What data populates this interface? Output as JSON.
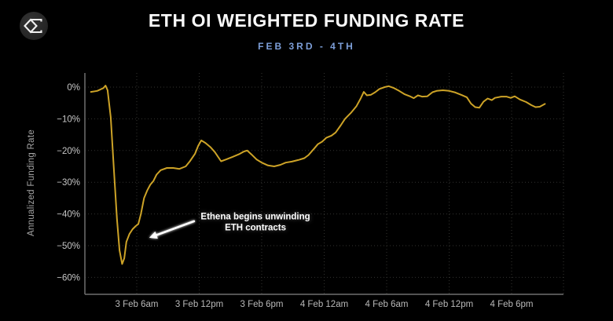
{
  "header": {
    "title": "ETH OI WEIGHTED FUNDING RATE",
    "subtitle": "FEB 3RD - 4TH"
  },
  "logo": {
    "name": "diamond-sigma-logo"
  },
  "colors": {
    "background": "#000000",
    "title": "#fafafa",
    "subtitle": "#7d9fd9",
    "line": "#cda327",
    "grid": "#333330",
    "axis": "#6f6f6f",
    "tick_label": "#bcbcbc",
    "annotation": "#ffffff"
  },
  "chart_data": {
    "type": "line",
    "title": "ETH OI WEIGHTED FUNDING RATE",
    "subtitle": "FEB 3RD - 4TH",
    "ylabel": "Annualized Funding Rate",
    "x_unit": "hours since 3 Feb 12am",
    "xlim": [
      1.0,
      46.9
    ],
    "ylim": [
      -65,
      4.5
    ],
    "grid": true,
    "legend": false,
    "line_color": "#cda327",
    "x_ticks": [
      {
        "t": 6,
        "label": "3 Feb 6am"
      },
      {
        "t": 12,
        "label": "3 Feb 12pm"
      },
      {
        "t": 18,
        "label": "3 Feb 6pm"
      },
      {
        "t": 24,
        "label": "4 Feb 12am"
      },
      {
        "t": 30,
        "label": "4 Feb 6am"
      },
      {
        "t": 36,
        "label": "4 Feb 12pm"
      },
      {
        "t": 42,
        "label": "4 Feb 6pm"
      }
    ],
    "y_ticks": [
      {
        "v": 0,
        "label": "0%"
      },
      {
        "v": -10,
        "label": "−10%"
      },
      {
        "v": -20,
        "label": "−20%"
      },
      {
        "v": -30,
        "label": "−30%"
      },
      {
        "v": -40,
        "label": "−40%"
      },
      {
        "v": -50,
        "label": "−50%"
      },
      {
        "v": -60,
        "label": "−60%"
      }
    ],
    "series": [
      {
        "name": "ETH OI weighted funding rate (annualized %)",
        "points": [
          [
            1.6,
            -1.5
          ],
          [
            2.2,
            -1.2
          ],
          [
            2.8,
            -0.3
          ],
          [
            3.0,
            0.5
          ],
          [
            3.2,
            -1.0
          ],
          [
            3.5,
            -9.5
          ],
          [
            3.8,
            -25.5
          ],
          [
            4.1,
            -41.5
          ],
          [
            4.35,
            -51.5
          ],
          [
            4.6,
            -55.8
          ],
          [
            4.8,
            -54.0
          ],
          [
            5.0,
            -48.8
          ],
          [
            5.3,
            -46.3
          ],
          [
            5.6,
            -44.8
          ],
          [
            5.9,
            -43.8
          ],
          [
            6.15,
            -43.2
          ],
          [
            6.4,
            -40.0
          ],
          [
            6.7,
            -35.0
          ],
          [
            7.0,
            -32.6
          ],
          [
            7.3,
            -30.8
          ],
          [
            7.6,
            -29.6
          ],
          [
            7.9,
            -27.6
          ],
          [
            8.3,
            -26.2
          ],
          [
            8.9,
            -25.5
          ],
          [
            9.5,
            -25.5
          ],
          [
            10.1,
            -25.8
          ],
          [
            10.7,
            -25.0
          ],
          [
            11.1,
            -23.4
          ],
          [
            11.6,
            -21.0
          ],
          [
            11.9,
            -18.5
          ],
          [
            12.2,
            -16.8
          ],
          [
            12.6,
            -17.6
          ],
          [
            13.1,
            -19.0
          ],
          [
            13.5,
            -20.5
          ],
          [
            14.1,
            -23.4
          ],
          [
            14.6,
            -22.8
          ],
          [
            15.2,
            -22.0
          ],
          [
            15.8,
            -21.2
          ],
          [
            16.3,
            -20.3
          ],
          [
            16.6,
            -20.0
          ],
          [
            17.0,
            -21.2
          ],
          [
            17.5,
            -22.8
          ],
          [
            18.0,
            -23.8
          ],
          [
            18.6,
            -24.7
          ],
          [
            19.2,
            -25.0
          ],
          [
            19.8,
            -24.5
          ],
          [
            20.3,
            -23.8
          ],
          [
            20.9,
            -23.5
          ],
          [
            21.5,
            -23.0
          ],
          [
            22.1,
            -22.4
          ],
          [
            22.5,
            -21.4
          ],
          [
            23.0,
            -19.5
          ],
          [
            23.4,
            -18.0
          ],
          [
            23.8,
            -17.2
          ],
          [
            24.2,
            -16.0
          ],
          [
            24.7,
            -15.3
          ],
          [
            25.1,
            -14.3
          ],
          [
            25.6,
            -12.0
          ],
          [
            26.0,
            -10.0
          ],
          [
            26.6,
            -8.0
          ],
          [
            27.1,
            -6.0
          ],
          [
            27.5,
            -3.6
          ],
          [
            27.8,
            -1.5
          ],
          [
            28.1,
            -2.6
          ],
          [
            28.5,
            -2.4
          ],
          [
            28.9,
            -1.6
          ],
          [
            29.3,
            -0.6
          ],
          [
            29.8,
            0.0
          ],
          [
            30.2,
            0.3
          ],
          [
            30.7,
            -0.3
          ],
          [
            31.2,
            -1.2
          ],
          [
            31.7,
            -2.2
          ],
          [
            32.3,
            -3.0
          ],
          [
            32.6,
            -3.5
          ],
          [
            33.0,
            -2.6
          ],
          [
            33.4,
            -3.0
          ],
          [
            33.9,
            -2.9
          ],
          [
            34.4,
            -1.6
          ],
          [
            34.8,
            -1.2
          ],
          [
            35.4,
            -1.0
          ],
          [
            36.0,
            -1.2
          ],
          [
            36.6,
            -1.7
          ],
          [
            37.2,
            -2.5
          ],
          [
            37.7,
            -3.2
          ],
          [
            38.1,
            -5.2
          ],
          [
            38.5,
            -6.3
          ],
          [
            38.9,
            -6.5
          ],
          [
            39.3,
            -4.6
          ],
          [
            39.7,
            -3.6
          ],
          [
            40.1,
            -4.1
          ],
          [
            40.4,
            -3.4
          ],
          [
            41.0,
            -3.0
          ],
          [
            41.5,
            -3.0
          ],
          [
            41.9,
            -3.4
          ],
          [
            42.3,
            -2.9
          ],
          [
            42.8,
            -3.9
          ],
          [
            43.4,
            -4.7
          ],
          [
            43.9,
            -5.7
          ],
          [
            44.3,
            -6.3
          ],
          [
            44.7,
            -6.2
          ],
          [
            45.2,
            -5.3
          ]
        ]
      }
    ],
    "annotation": {
      "line1": "Ethena begins unwinding",
      "line2": "ETH contracts",
      "text_at": {
        "t": 17.4,
        "v": -42.9
      },
      "arrow_from": {
        "t": 11.5,
        "v": -42.3
      },
      "arrow_to": {
        "t": 7.2,
        "v": -47.5
      }
    }
  }
}
